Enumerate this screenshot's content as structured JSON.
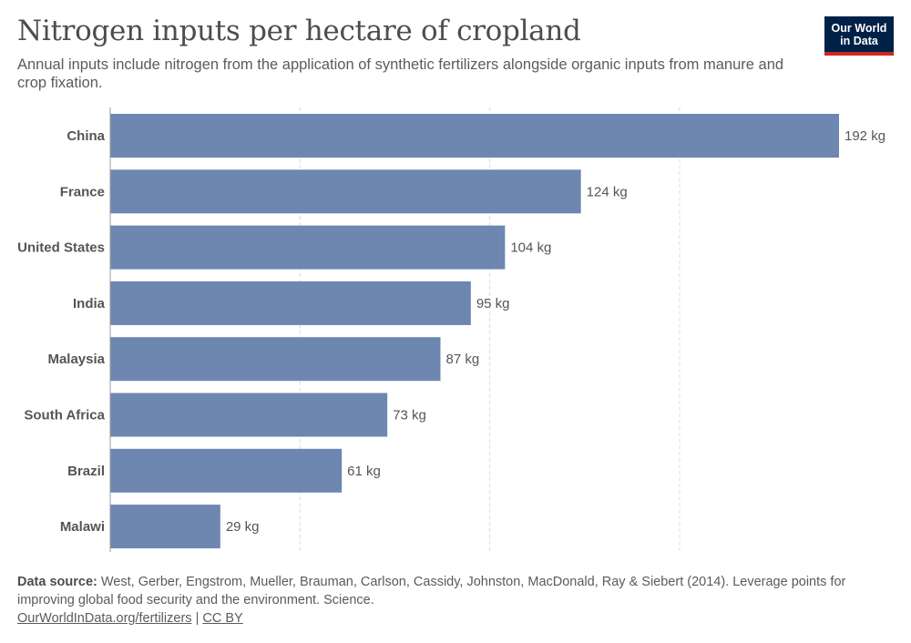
{
  "header": {
    "title": "Nitrogen inputs per hectare of cropland",
    "subtitle": "Annual inputs include nitrogen from the application of synthetic fertilizers alongside organic inputs from manure and crop fixation."
  },
  "logo": {
    "line1": "Our World",
    "line2": "in Data"
  },
  "chart_data": {
    "type": "bar",
    "orientation": "horizontal",
    "categories": [
      "China",
      "France",
      "United States",
      "India",
      "Malaysia",
      "South Africa",
      "Brazil",
      "Malawi"
    ],
    "values": [
      192,
      124,
      104,
      95,
      87,
      73,
      61,
      29
    ],
    "value_labels": [
      "192 kg",
      "124 kg",
      "104 kg",
      "95 kg",
      "87 kg",
      "73 kg",
      "61 kg",
      "29 kg"
    ],
    "unit": "kg",
    "xlim": [
      0,
      192
    ],
    "gridlines": [
      50,
      100,
      150
    ],
    "grid": true,
    "bar_color": "#6d87b0"
  },
  "footer": {
    "source_label": "Data source:",
    "source_text": "West, Gerber, Engstrom, Mueller, Brauman, Carlson, Cassidy, Johnston, MacDonald, Ray & Siebert (2014). Leverage points for improving global food security and the environment. Science.",
    "link": "OurWorldInData.org/fertilizers",
    "separator": "|",
    "license": "CC BY"
  }
}
